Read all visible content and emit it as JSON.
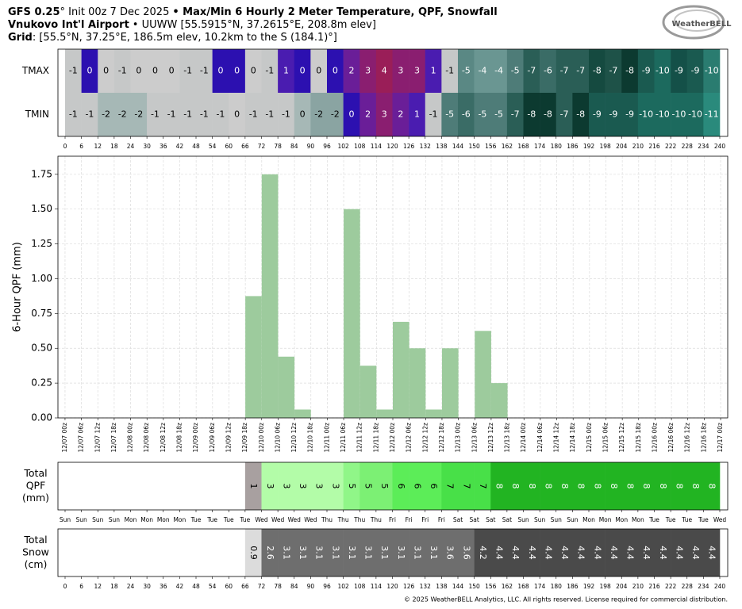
{
  "header": {
    "model": "GFS 0.25",
    "init": "° Init 00z 7 Dec 2025",
    "title": "• Max/Min 6 Hourly 2 Meter Temperature, QPF, Snowfall",
    "location": "Vnukovo Int'l Airport",
    "station": "• UUWW [55.5915°N, 37.2615°E, 208.8m elev]",
    "grid_label": "Grid",
    "grid": ": [55.5°N, 37.25°E, 186.5m elev, 10.2km to the S (184.1)°]"
  },
  "logo": "WeatherBELL",
  "footer": "© 2025 WeatherBELL Analytics, LLC. All rights reserved. License required for commercial distribution.",
  "chart_data": [
    {
      "type": "heatmap",
      "series": [
        {
          "name": "TMAX",
          "values": [
            -1,
            0,
            0,
            -1,
            0,
            0,
            0,
            -1,
            -1,
            0,
            0,
            0,
            -1,
            1,
            0,
            0,
            0,
            2,
            3,
            4,
            3,
            3,
            1,
            -1,
            -5,
            -4,
            -4,
            -5,
            -7,
            -6,
            -7,
            -7,
            -8,
            -7,
            -8,
            -9,
            -10,
            -9,
            -9,
            -10
          ],
          "colors": [
            "#c6c8c8",
            "#2c10b0",
            "#cccccc",
            "#c6c8c8",
            "#cccccc",
            "#cccccc",
            "#cccccc",
            "#c6c8c8",
            "#c6c8c8",
            "#2c10b0",
            "#2c10b0",
            "#cccccc",
            "#c6c8c8",
            "#4a1cb0",
            "#2c10b0",
            "#cccccc",
            "#2c10b0",
            "#6a1e98",
            "#8a1e70",
            "#9a1e58",
            "#8a1e70",
            "#8a1e70",
            "#4a1cb0",
            "#c6c8c8",
            "#5a8884",
            "#6a9692",
            "#6a9692",
            "#4e7c78",
            "#2a5e56",
            "#3a6c66",
            "#2a5e56",
            "#2a5e56",
            "#154a40",
            "#1e5248",
            "#0c3a30",
            "#1a5a50",
            "#1c6a5e",
            "#145048",
            "#1a5a50",
            "#2a7c70"
          ]
        },
        {
          "name": "TMIN",
          "values": [
            -1,
            -1,
            -2,
            -2,
            -2,
            -1,
            -1,
            -1,
            -1,
            -1,
            0,
            -1,
            -1,
            -1,
            0,
            -2,
            -2,
            0,
            2,
            3,
            2,
            1,
            -1,
            -5,
            -6,
            -5,
            -5,
            -7,
            -8,
            -8,
            -7,
            -8,
            -9,
            -9,
            -9,
            -10,
            -10,
            -10,
            -10,
            -11
          ],
          "colors": [
            "#c6c8c8",
            "#c6c8c8",
            "#a6b8b6",
            "#a6b8b6",
            "#a6b8b6",
            "#c6c8c8",
            "#c6c8c8",
            "#c6c8c8",
            "#c6c8c8",
            "#c6c8c8",
            "#cccccc",
            "#c6c8c8",
            "#c6c8c8",
            "#c6c8c8",
            "#a6b8b6",
            "#8aa4a2",
            "#8aa4a2",
            "#2c10b0",
            "#6a1e98",
            "#8a1e70",
            "#6a1e98",
            "#4a1cb0",
            "#c6c8c8",
            "#4e7c78",
            "#3a6c66",
            "#4e7c78",
            "#4e7c78",
            "#2a5e56",
            "#0c3a30",
            "#0c3a30",
            "#2a5e56",
            "#0c3a30",
            "#1a5a50",
            "#1a5a50",
            "#1a5a50",
            "#1c6a5e",
            "#1c6a5e",
            "#1c6a5e",
            "#1c6a5e",
            "#2a8a7c"
          ]
        }
      ],
      "xlim": [
        0,
        240
      ],
      "xticks": [
        0,
        6,
        12,
        18,
        24,
        30,
        36,
        42,
        48,
        54,
        60,
        66,
        72,
        78,
        84,
        90,
        96,
        102,
        108,
        114,
        120,
        126,
        132,
        138,
        144,
        150,
        156,
        162,
        168,
        174,
        180,
        186,
        192,
        198,
        204,
        210,
        216,
        222,
        228,
        234,
        240
      ]
    },
    {
      "type": "histogram",
      "y_label": "6-Hour QPF (mm)",
      "color": "#9dcb9d",
      "grid": true,
      "bins": [
        0,
        6,
        12,
        18,
        24,
        30,
        36,
        42,
        48,
        54,
        60,
        66,
        72,
        78,
        84,
        90,
        96,
        102,
        108,
        114,
        120,
        126,
        132,
        138,
        144,
        150,
        156,
        162,
        168,
        174,
        180,
        186,
        192,
        198,
        204,
        210,
        216,
        222,
        228,
        234,
        240
      ],
      "values": [
        0,
        0,
        0,
        0,
        0,
        0,
        0,
        0,
        0,
        0,
        0,
        0.875,
        1.75,
        0.44,
        0.06,
        0,
        0,
        1.5,
        0.375,
        0.06,
        0.69,
        0.5,
        0.06,
        0.5,
        0,
        0.625,
        0.25,
        0,
        0,
        0,
        0,
        0,
        0,
        0,
        0,
        0,
        0,
        0,
        0,
        0
      ],
      "xlim": [
        -2.6,
        242.6
      ],
      "ylim": [
        0,
        1.88
      ],
      "yticks": [
        {
          "value": 0,
          "label": "0.00"
        },
        {
          "value": 0.25,
          "label": "0.25"
        },
        {
          "value": 0.5,
          "label": "0.50"
        },
        {
          "value": 0.75,
          "label": "0.75"
        },
        {
          "value": 1,
          "label": "1.00"
        },
        {
          "value": 1.25,
          "label": "1.25"
        },
        {
          "value": 1.5,
          "label": "1.50"
        },
        {
          "value": 1.75,
          "label": "1.75"
        }
      ],
      "xticks": [
        {
          "value": 0,
          "label": "12/07 00z"
        },
        {
          "value": 6,
          "label": "12/07 06z"
        },
        {
          "value": 12,
          "label": "12/07 12z"
        },
        {
          "value": 18,
          "label": "12/07 18z"
        },
        {
          "value": 24,
          "label": "12/08 00z"
        },
        {
          "value": 30,
          "label": "12/08 06z"
        },
        {
          "value": 36,
          "label": "12/08 12z"
        },
        {
          "value": 42,
          "label": "12/08 18z"
        },
        {
          "value": 48,
          "label": "12/09 00z"
        },
        {
          "value": 54,
          "label": "12/09 06z"
        },
        {
          "value": 60,
          "label": "12/09 12z"
        },
        {
          "value": 66,
          "label": "12/09 18z"
        },
        {
          "value": 72,
          "label": "12/10 00z"
        },
        {
          "value": 78,
          "label": "12/10 06z"
        },
        {
          "value": 84,
          "label": "12/10 12z"
        },
        {
          "value": 90,
          "label": "12/10 18z"
        },
        {
          "value": 96,
          "label": "12/11 00z"
        },
        {
          "value": 102,
          "label": "12/11 06z"
        },
        {
          "value": 108,
          "label": "12/11 12z"
        },
        {
          "value": 114,
          "label": "12/11 18z"
        },
        {
          "value": 120,
          "label": "12/12 00z"
        },
        {
          "value": 126,
          "label": "12/12 06z"
        },
        {
          "value": 132,
          "label": "12/12 12z"
        },
        {
          "value": 138,
          "label": "12/12 18z"
        },
        {
          "value": 144,
          "label": "12/13 00z"
        },
        {
          "value": 150,
          "label": "12/13 06z"
        },
        {
          "value": 156,
          "label": "12/13 12z"
        },
        {
          "value": 162,
          "label": "12/13 18z"
        },
        {
          "value": 168,
          "label": "12/14 00z"
        },
        {
          "value": 174,
          "label": "12/14 06z"
        },
        {
          "value": 180,
          "label": "12/14 12z"
        },
        {
          "value": 186,
          "label": "12/14 18z"
        },
        {
          "value": 192,
          "label": "12/15 00z"
        },
        {
          "value": 198,
          "label": "12/15 06z"
        },
        {
          "value": 204,
          "label": "12/15 12z"
        },
        {
          "value": 210,
          "label": "12/15 18z"
        },
        {
          "value": 216,
          "label": "12/16 00z"
        },
        {
          "value": 222,
          "label": "12/16 06z"
        },
        {
          "value": 228,
          "label": "12/16 12z"
        },
        {
          "value": 234,
          "label": "12/16 18z"
        },
        {
          "value": 240,
          "label": "12/17 00z"
        }
      ]
    },
    {
      "type": "table",
      "label": [
        "Total",
        "QPF",
        "(mm)"
      ],
      "values": [
        null,
        null,
        null,
        null,
        null,
        null,
        null,
        null,
        null,
        null,
        null,
        1,
        3,
        3,
        3,
        3,
        3,
        5,
        5,
        5,
        6,
        6,
        6,
        7,
        7,
        7,
        8,
        8,
        8,
        8,
        8,
        8,
        8,
        8,
        8,
        8,
        8,
        8,
        8,
        8
      ],
      "colors": [
        null,
        null,
        null,
        null,
        null,
        null,
        null,
        null,
        null,
        null,
        null,
        "#a8a0a0",
        "#b3fca8",
        "#b3fca8",
        "#b3fca8",
        "#b3fca8",
        "#b3fca8",
        "#90f688",
        "#7cf074",
        "#7cf074",
        "#5ced58",
        "#5ced58",
        "#5ced58",
        "#48e048",
        "#48e048",
        "#48e048",
        "#22b422",
        "#22b422",
        "#22b422",
        "#22b422",
        "#22b422",
        "#22b422",
        "#22b422",
        "#22b422",
        "#22b422",
        "#22b422",
        "#22b422",
        "#22b422",
        "#22b422",
        "#22b422"
      ],
      "xlim": [
        0,
        240
      ],
      "xticks": [
        {
          "value": 0,
          "label": "Sun"
        },
        {
          "value": 6,
          "label": "Sun"
        },
        {
          "value": 12,
          "label": "Sun"
        },
        {
          "value": 18,
          "label": "Sun"
        },
        {
          "value": 24,
          "label": "Mon"
        },
        {
          "value": 30,
          "label": "Mon"
        },
        {
          "value": 36,
          "label": "Mon"
        },
        {
          "value": 42,
          "label": "Mon"
        },
        {
          "value": 48,
          "label": "Tue"
        },
        {
          "value": 54,
          "label": "Tue"
        },
        {
          "value": 60,
          "label": "Tue"
        },
        {
          "value": 66,
          "label": "Tue"
        },
        {
          "value": 72,
          "label": "Wed"
        },
        {
          "value": 78,
          "label": "Wed"
        },
        {
          "value": 84,
          "label": "Wed"
        },
        {
          "value": 90,
          "label": "Wed"
        },
        {
          "value": 96,
          "label": "Thu"
        },
        {
          "value": 102,
          "label": "Thu"
        },
        {
          "value": 108,
          "label": "Thu"
        },
        {
          "value": 114,
          "label": "Thu"
        },
        {
          "value": 120,
          "label": "Fri"
        },
        {
          "value": 126,
          "label": "Fri"
        },
        {
          "value": 132,
          "label": "Fri"
        },
        {
          "value": 138,
          "label": "Fri"
        },
        {
          "value": 144,
          "label": "Sat"
        },
        {
          "value": 150,
          "label": "Sat"
        },
        {
          "value": 156,
          "label": "Sat"
        },
        {
          "value": 162,
          "label": "Sat"
        },
        {
          "value": 168,
          "label": "Sun"
        },
        {
          "value": 174,
          "label": "Sun"
        },
        {
          "value": 180,
          "label": "Sun"
        },
        {
          "value": 186,
          "label": "Sun"
        },
        {
          "value": 192,
          "label": "Mon"
        },
        {
          "value": 198,
          "label": "Mon"
        },
        {
          "value": 204,
          "label": "Mon"
        },
        {
          "value": 210,
          "label": "Mon"
        },
        {
          "value": 216,
          "label": "Tue"
        },
        {
          "value": 222,
          "label": "Tue"
        },
        {
          "value": 228,
          "label": "Tue"
        },
        {
          "value": 234,
          "label": "Tue"
        },
        {
          "value": 240,
          "label": "Wed"
        }
      ]
    },
    {
      "type": "table",
      "label": [
        "Total",
        "Snow",
        "(cm)"
      ],
      "values": [
        null,
        null,
        null,
        null,
        null,
        null,
        null,
        null,
        null,
        null,
        null,
        0.9,
        2.6,
        3.1,
        3.1,
        3.1,
        3.1,
        3.1,
        3.1,
        3.1,
        3.1,
        3.1,
        3.1,
        3.6,
        3.6,
        4.2,
        4.4,
        4.4,
        4.4,
        4.4,
        4.4,
        4.4,
        4.4,
        4.4,
        4.4,
        4.4,
        4.4,
        4.4,
        4.4,
        4.4
      ],
      "colors": [
        null,
        null,
        null,
        null,
        null,
        null,
        null,
        null,
        null,
        null,
        null,
        "#dcdcdc",
        "#6e6e6e",
        "#6e6e6e",
        "#6e6e6e",
        "#6e6e6e",
        "#6e6e6e",
        "#6e6e6e",
        "#6e6e6e",
        "#6e6e6e",
        "#6e6e6e",
        "#6e6e6e",
        "#6e6e6e",
        "#6e6e6e",
        "#6e6e6e",
        "#4a4a4a",
        "#4a4a4a",
        "#4a4a4a",
        "#4a4a4a",
        "#4a4a4a",
        "#4a4a4a",
        "#4a4a4a",
        "#4a4a4a",
        "#4a4a4a",
        "#4a4a4a",
        "#4a4a4a",
        "#4a4a4a",
        "#4a4a4a",
        "#4a4a4a",
        "#4a4a4a"
      ],
      "xlim": [
        0,
        240
      ],
      "xticks": [
        0,
        6,
        12,
        18,
        24,
        30,
        36,
        42,
        48,
        54,
        60,
        66,
        72,
        78,
        84,
        90,
        96,
        102,
        108,
        114,
        120,
        126,
        132,
        138,
        144,
        150,
        156,
        162,
        168,
        174,
        180,
        186,
        192,
        198,
        204,
        210,
        216,
        222,
        228,
        234,
        240
      ]
    }
  ]
}
